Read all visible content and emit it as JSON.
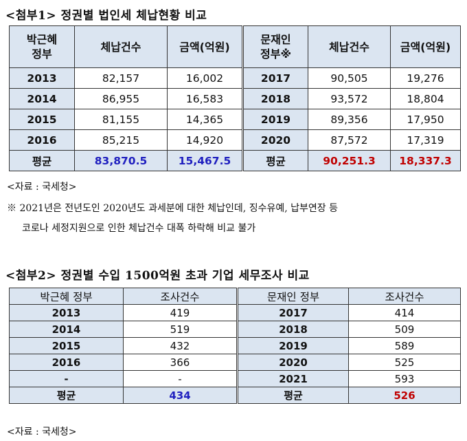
{
  "section1": {
    "title": "<첨부1> 정권별 법인세 체납현황 비교",
    "headers": {
      "gov_left_line1": "박근혜",
      "gov_left_line2": "정부",
      "count": "체납건수",
      "amount": "금액(억원)",
      "gov_right_line1": "문재인",
      "gov_right_line2": "정부※",
      "count_r": "체납건수",
      "amount_r": "금액(억원)"
    },
    "rows": [
      {
        "y1": "2013",
        "c1": "82,157",
        "a1": "16,002",
        "y2": "2017",
        "c2": "90,505",
        "a2": "19,276"
      },
      {
        "y1": "2014",
        "c1": "86,955",
        "a1": "16,583",
        "y2": "2018",
        "c2": "93,572",
        "a2": "18,804"
      },
      {
        "y1": "2015",
        "c1": "81,155",
        "a1": "14,365",
        "y2": "2019",
        "c2": "89,356",
        "a2": "17,950"
      },
      {
        "y1": "2016",
        "c1": "85,215",
        "a1": "14,920",
        "y2": "2020",
        "c2": "87,572",
        "a2": "17,319"
      }
    ],
    "average": {
      "label1": "평균",
      "c1": "83,870.5",
      "a1": "15,467.5",
      "label2": "평균",
      "c2": "90,251.3",
      "a2": "18,337.3"
    },
    "source": "<자료 : 국세청>",
    "footnote_line1": "※ 2021년은 전년도인 2020년도 과세분에 대한 체납인데, 징수유예, 납부연장 등",
    "footnote_line2": "코로나 세정지원으로 인한 체납건수 대폭 하락해 비교 불가"
  },
  "section2": {
    "title": "<첨부2> 정권별 수입 1500억원 초과 기업 세무조사 비교",
    "headers": {
      "gov_left": "박근혜 정부",
      "count_left": "조사건수",
      "gov_right": "문재인 정부",
      "count_right": "조사건수"
    },
    "rows": [
      {
        "y1": "2013",
        "c1": "419",
        "y2": "2017",
        "c2": "414"
      },
      {
        "y1": "2014",
        "c1": "519",
        "y2": "2018",
        "c2": "509"
      },
      {
        "y1": "2015",
        "c1": "432",
        "y2": "2019",
        "c2": "589"
      },
      {
        "y1": "2016",
        "c1": "366",
        "y2": "2020",
        "c2": "525"
      },
      {
        "y1": "-",
        "c1": "-",
        "y2": "2021",
        "c2": "593"
      }
    ],
    "average": {
      "label1": "평균",
      "c1": "434",
      "label2": "평균",
      "c2": "526"
    },
    "source": "<자료 : 국세청>"
  },
  "colors": {
    "header_bg": "#dbe5f1",
    "blue": "#1f1fbf",
    "red": "#c00000"
  }
}
